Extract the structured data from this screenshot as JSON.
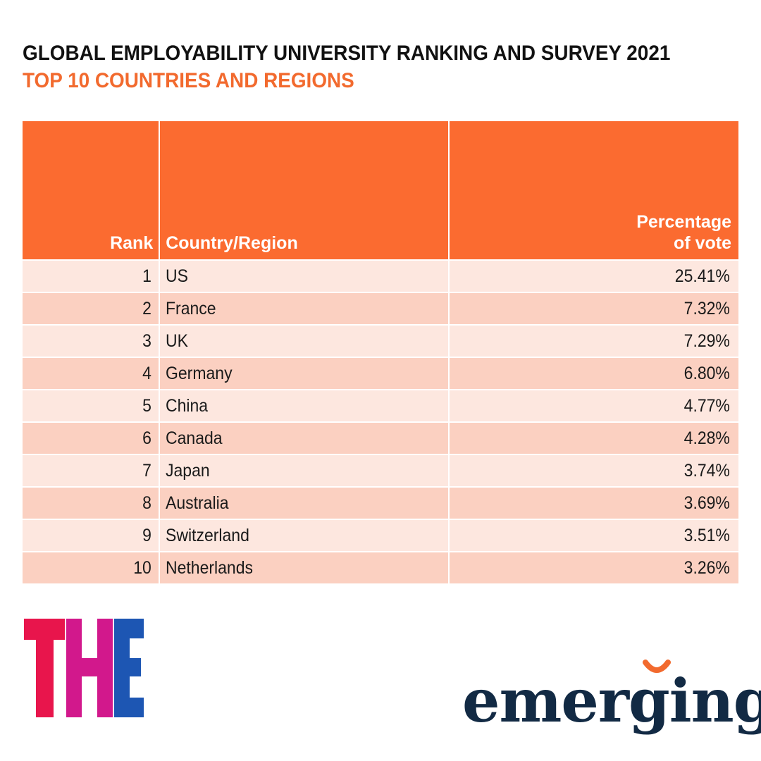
{
  "header": {
    "title": "GLOBAL EMPLOYABILITY UNIVERSITY RANKING AND SURVEY 2021",
    "subtitle": "TOP 10 COUNTRIES AND REGIONS"
  },
  "colors": {
    "title": "#111111",
    "subtitle": "#f26a2e",
    "header_bg": "#fb6b30",
    "row_light": "#fde7df",
    "row_dark": "#fbd0c1",
    "the_t": "#e8154c",
    "the_h": "#d2188c",
    "the_e": "#1d56b3",
    "emerging_text": "#122a44",
    "emerging_accent": "#f26a2e"
  },
  "chart_data": {
    "type": "table",
    "title": "GLOBAL EMPLOYABILITY UNIVERSITY RANKING AND SURVEY 2021",
    "subtitle": "TOP 10 COUNTRIES AND REGIONS",
    "columns": [
      "Rank",
      "Country/Region",
      "Percentage\nof vote"
    ],
    "rows": [
      {
        "rank": "1",
        "country": "US",
        "percentage": "25.41%"
      },
      {
        "rank": "2",
        "country": "France",
        "percentage": "7.32%"
      },
      {
        "rank": "3",
        "country": "UK",
        "percentage": "7.29%"
      },
      {
        "rank": "4",
        "country": "Germany",
        "percentage": "6.80%"
      },
      {
        "rank": "5",
        "country": "China",
        "percentage": "4.77%"
      },
      {
        "rank": "6",
        "country": "Canada",
        "percentage": "4.28%"
      },
      {
        "rank": "7",
        "country": "Japan",
        "percentage": "3.74%"
      },
      {
        "rank": "8",
        "country": "Australia",
        "percentage": "3.69%"
      },
      {
        "rank": "9",
        "country": "Switzerland",
        "percentage": "3.51%"
      },
      {
        "rank": "10",
        "country": "Netherlands",
        "percentage": "3.26%"
      }
    ]
  },
  "logos": {
    "the": {
      "t": "T",
      "h": "H",
      "e": "E"
    },
    "emerging": {
      "text": "emerging"
    }
  }
}
